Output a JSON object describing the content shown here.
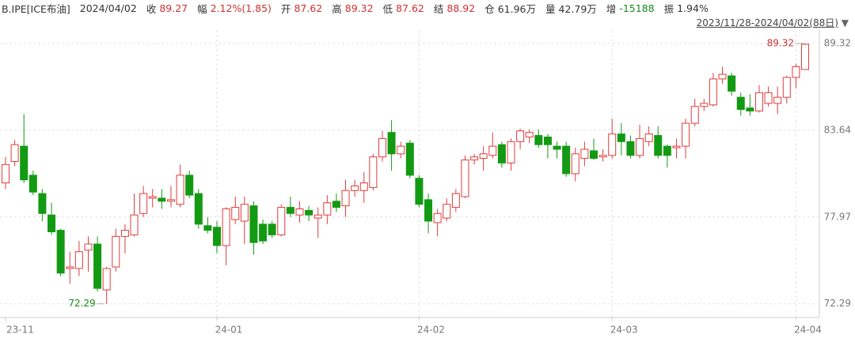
{
  "chart_data": {
    "type": "candlestick",
    "symbol": "B.IPE[ICE布油]",
    "date": "2024/04/02",
    "stats": [
      {
        "label": "收",
        "value": "89.27",
        "color": "#d03030"
      },
      {
        "label": "幅",
        "value": "2.12%(1.85)",
        "color": "#d03030"
      },
      {
        "label": "开",
        "value": "87.62",
        "color": "#d03030"
      },
      {
        "label": "高",
        "value": "89.32",
        "color": "#d03030"
      },
      {
        "label": "低",
        "value": "87.62",
        "color": "#d03030"
      },
      {
        "label": "结",
        "value": "88.92",
        "color": "#d03030"
      },
      {
        "label": "仓",
        "value": "61.96万",
        "color": "#333333"
      },
      {
        "label": "量",
        "value": "42.79万",
        "color": "#333333"
      },
      {
        "label": "增",
        "value": "-15188",
        "color": "#1a8a1a"
      },
      {
        "label": "振",
        "value": "1.94%",
        "color": "#333333"
      }
    ],
    "range_label": "2023/11/28-2024/04/02(88日)",
    "range_arrow": "▼",
    "categories": [
      "23-11",
      null,
      null,
      null,
      null,
      null,
      null,
      null,
      null,
      null,
      null,
      null,
      null,
      null,
      null,
      null,
      null,
      null,
      null,
      null,
      null,
      null,
      null,
      "24-01",
      null,
      null,
      null,
      null,
      null,
      null,
      null,
      null,
      null,
      null,
      null,
      null,
      null,
      null,
      null,
      null,
      null,
      null,
      null,
      null,
      null,
      "24-02",
      null,
      null,
      null,
      null,
      null,
      null,
      null,
      null,
      null,
      null,
      null,
      null,
      null,
      null,
      null,
      null,
      null,
      null,
      null,
      null,
      "24-03",
      null,
      null,
      null,
      null,
      null,
      null,
      null,
      null,
      null,
      null,
      null,
      null,
      null,
      null,
      null,
      null,
      null,
      null,
      null,
      "24-04",
      null
    ],
    "open": [
      80.2,
      81.6,
      82.6,
      80.7,
      79.5,
      78.1,
      77.1,
      74.6,
      74.6,
      75.8,
      76.2,
      73.2,
      74.7,
      76.7,
      76.8,
      78.2,
      79.2,
      79.2,
      79.0,
      78.8,
      80.7,
      79.5,
      77.4,
      77.3,
      76.1,
      77.8,
      77.7,
      78.7,
      77.5,
      77.5,
      76.8,
      78.6,
      78.1,
      78.4,
      77.9,
      78.1,
      79.0,
      78.7,
      79.7,
      79.7,
      79.9,
      81.9,
      83.5,
      82.1,
      82.8,
      80.5,
      79.1,
      77.6,
      77.9,
      78.6,
      79.3,
      81.7,
      81.8,
      82.0,
      82.7,
      81.5,
      82.9,
      83.2,
      83.3,
      83.2,
      82.6,
      82.6,
      80.8,
      81.8,
      82.3,
      81.9,
      82.0,
      83.4,
      82.9,
      82.0,
      82.9,
      83.3,
      82.6,
      82.5,
      82.6,
      84.1,
      85.2,
      85.3,
      87.0,
      87.2,
      85.8,
      85.1,
      84.9,
      85.4,
      85.4,
      85.8,
      87.1,
      87.62
    ],
    "high": [
      81.9,
      83.0,
      84.7,
      81.0,
      79.8,
      78.9,
      77.2,
      75.7,
      76.4,
      76.7,
      76.7,
      74.7,
      77.2,
      77.5,
      79.5,
      80.0,
      79.8,
      79.8,
      80.0,
      81.4,
      81.0,
      79.8,
      77.97,
      77.7,
      78.6,
      79.3,
      79.3,
      79.0,
      77.8,
      77.7,
      78.8,
      79.3,
      79.0,
      78.7,
      78.6,
      79.4,
      79.5,
      80.4,
      80.4,
      80.9,
      82.1,
      83.6,
      84.3,
      82.9,
      83.0,
      80.7,
      79.5,
      78.5,
      79.2,
      79.8,
      82.0,
      82.1,
      82.6,
      83.5,
      82.9,
      83.1,
      83.75,
      83.7,
      83.7,
      83.4,
      82.9,
      82.9,
      82.5,
      82.9,
      83.1,
      82.4,
      84.4,
      84.1,
      83.3,
      84.0,
      83.9,
      83.9,
      82.7,
      83.1,
      84.4,
      85.7,
      85.7,
      87.4,
      87.8,
      87.4,
      86.1,
      86.0,
      86.6,
      86.5,
      86.5,
      87.2,
      88.0,
      89.32
    ],
    "low": [
      79.8,
      81.3,
      80.2,
      79.4,
      77.7,
      76.8,
      74.1,
      73.6,
      74.1,
      74.4,
      73.1,
      72.29,
      74.4,
      75.6,
      76.7,
      77.97,
      78.6,
      78.5,
      78.6,
      78.6,
      79.2,
      77.2,
      76.9,
      75.6,
      74.8,
      77.5,
      76.2,
      75.5,
      76.2,
      76.6,
      76.7,
      77.97,
      77.6,
      77.7,
      76.6,
      77.5,
      78.3,
      77.97,
      79.3,
      78.9,
      79.7,
      81.6,
      81.0,
      81.8,
      80.5,
      78.6,
      76.9,
      76.7,
      77.7,
      78.3,
      79.2,
      81.4,
      81.0,
      81.8,
      81.2,
      81.0,
      82.4,
      82.8,
      82.5,
      81.8,
      81.8,
      80.6,
      80.3,
      81.3,
      81.7,
      81.6,
      81.8,
      82.0,
      81.8,
      81.8,
      82.6,
      81.8,
      81.2,
      81.8,
      81.8,
      83.9,
      84.9,
      85.2,
      86.7,
      85.9,
      84.6,
      84.6,
      84.8,
      85.2,
      84.7,
      85.4,
      86.4,
      87.62
    ],
    "close": [
      81.4,
      82.7,
      80.4,
      79.6,
      78.2,
      77.0,
      74.3,
      74.7,
      75.7,
      76.2,
      73.3,
      74.6,
      76.7,
      77.1,
      78.1,
      79.5,
      79.3,
      79.0,
      79.1,
      80.7,
      79.4,
      77.5,
      77.1,
      76.1,
      78.5,
      78.6,
      78.8,
      76.3,
      76.4,
      76.8,
      78.6,
      78.2,
      78.5,
      78.1,
      78.1,
      78.9,
      78.6,
      79.7,
      80.0,
      80.2,
      81.9,
      83.1,
      82.1,
      82.6,
      80.7,
      78.8,
      77.7,
      78.2,
      78.8,
      79.5,
      81.7,
      81.9,
      82.1,
      82.6,
      81.5,
      82.9,
      83.6,
      83.5,
      82.7,
      82.7,
      82.4,
      80.8,
      82.1,
      82.4,
      81.8,
      82.0,
      83.4,
      82.9,
      82.0,
      83.1,
      83.4,
      82.0,
      82.0,
      82.6,
      84.1,
      85.2,
      85.4,
      87.0,
      87.3,
      86.2,
      85.0,
      84.9,
      86.1,
      86.1,
      85.8,
      87.1,
      87.8,
      89.27
    ],
    "up_color": "#e03c3c",
    "down_color": "#139a13",
    "max_marker": 89.32,
    "min_marker": 72.29,
    "ylim": [
      71.5,
      90.2
    ],
    "yticks": [
      89.32,
      83.64,
      77.97,
      72.29
    ],
    "grid": true
  }
}
